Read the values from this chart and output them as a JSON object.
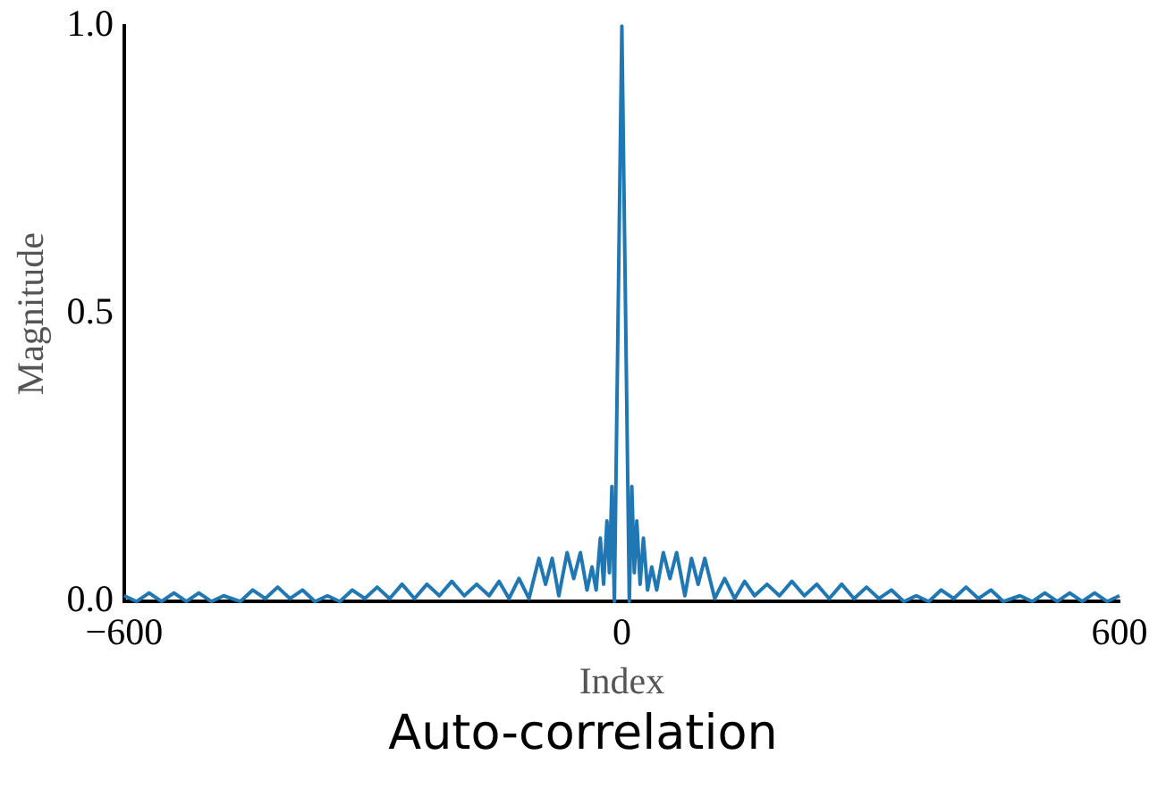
{
  "chart_data": {
    "type": "line",
    "title": "Auto-correlation",
    "xlabel": "Index",
    "ylabel": "Magnitude",
    "grid": false,
    "legend": false,
    "marker": "none",
    "line_style": "solid",
    "xlim": [
      -600,
      600
    ],
    "xticks": [
      {
        "value": -600,
        "label": "−600"
      },
      0,
      600
    ],
    "ylim": [
      0,
      1
    ],
    "yticks": [
      {
        "value": 0,
        "label": "0.0"
      },
      {
        "value": 0.5,
        "label": "0.5"
      },
      {
        "value": 1,
        "label": "1.0"
      }
    ],
    "series": [
      {
        "color": "#1f77b4",
        "x": [
          -600,
          -585,
          -570,
          -555,
          -540,
          -525,
          -510,
          -495,
          -480,
          -460,
          -445,
          -430,
          -415,
          -400,
          -385,
          -370,
          -355,
          -340,
          -325,
          -310,
          -295,
          -280,
          -265,
          -250,
          -235,
          -220,
          -205,
          -190,
          -175,
          -160,
          -148,
          -136,
          -124,
          -112,
          -100,
          -92,
          -84,
          -76,
          -66,
          -58,
          -50,
          -42,
          -36,
          -31,
          -26,
          -22,
          -18,
          -15,
          -12,
          -9,
          0,
          9,
          12,
          15,
          18,
          22,
          26,
          31,
          36,
          42,
          50,
          58,
          66,
          76,
          84,
          92,
          100,
          112,
          124,
          136,
          148,
          160,
          175,
          190,
          205,
          220,
          235,
          250,
          265,
          280,
          295,
          310,
          325,
          340,
          355,
          370,
          385,
          400,
          415,
          430,
          445,
          460,
          480,
          495,
          510,
          525,
          540,
          555,
          570,
          585,
          600
        ],
        "values": [
          0.01,
          0,
          0.015,
          0,
          0.015,
          0,
          0.015,
          0,
          0.01,
          0,
          0.02,
          0.005,
          0.025,
          0.005,
          0.02,
          0,
          0.01,
          0,
          0.02,
          0.005,
          0.025,
          0.005,
          0.03,
          0.005,
          0.03,
          0.01,
          0.035,
          0.01,
          0.03,
          0.01,
          0.035,
          0.005,
          0.04,
          0.005,
          0.075,
          0.03,
          0.075,
          0.01,
          0.085,
          0.04,
          0.085,
          0.02,
          0.06,
          0.02,
          0.11,
          0.03,
          0.14,
          0.05,
          0.2,
          0,
          1,
          0,
          0.2,
          0.05,
          0.14,
          0.03,
          0.11,
          0.02,
          0.06,
          0.02,
          0.085,
          0.04,
          0.085,
          0.01,
          0.075,
          0.03,
          0.075,
          0.005,
          0.04,
          0.005,
          0.035,
          0.01,
          0.03,
          0.01,
          0.035,
          0.01,
          0.03,
          0.005,
          0.03,
          0.005,
          0.025,
          0.005,
          0.02,
          0,
          0.01,
          0,
          0.02,
          0.005,
          0.025,
          0.005,
          0.02,
          0,
          0.01,
          0,
          0.015,
          0,
          0.015,
          0,
          0.015,
          0,
          0.01
        ]
      }
    ]
  }
}
